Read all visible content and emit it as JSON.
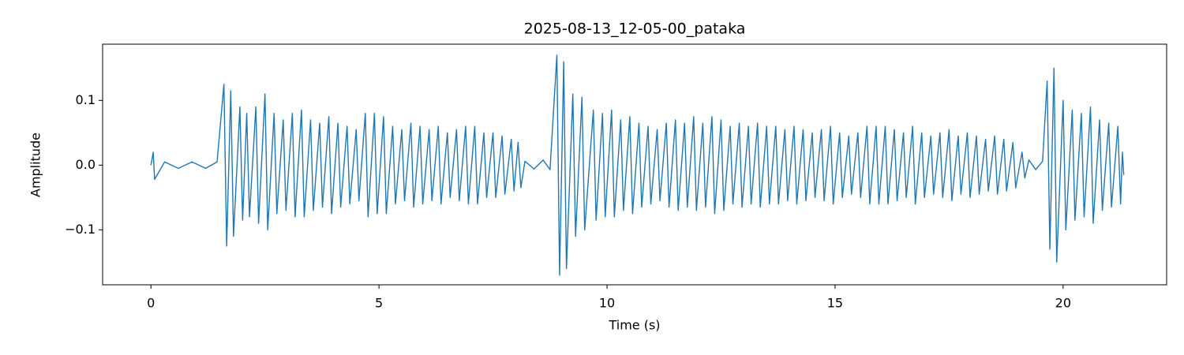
{
  "chart_data": {
    "type": "line",
    "title": "2025-08-13_12-05-00_pataka",
    "xlabel": "Time (s)",
    "ylabel": "Amplitude",
    "xlim": [
      -1.06,
      22.27
    ],
    "xticks": [
      0,
      5,
      10,
      15,
      20
    ],
    "ylim": [
      -0.185,
      0.187
    ],
    "yticks": [
      {
        "value": -0.1,
        "label": "−0.1"
      },
      {
        "value": 0,
        "label": "0.0"
      },
      0.1
    ],
    "grid": false,
    "series": [
      {
        "color": "#1f77b4",
        "x": [
          0,
          0.05,
          0.08,
          0.3,
          0.6,
          0.9,
          1.2,
          1.45,
          1.6,
          1.66,
          1.75,
          1.81,
          1.95,
          2.01,
          2.1,
          2.16,
          2.3,
          2.36,
          2.5,
          2.56,
          2.7,
          2.76,
          2.9,
          2.96,
          3.1,
          3.16,
          3.3,
          3.36,
          3.5,
          3.56,
          3.7,
          3.76,
          3.9,
          3.96,
          4.1,
          4.16,
          4.3,
          4.36,
          4.5,
          4.56,
          4.7,
          4.76,
          4.9,
          4.96,
          5.1,
          5.16,
          5.3,
          5.36,
          5.5,
          5.56,
          5.7,
          5.76,
          5.9,
          5.96,
          6.1,
          6.16,
          6.3,
          6.36,
          6.5,
          6.56,
          6.7,
          6.76,
          6.9,
          6.96,
          7.1,
          7.16,
          7.3,
          7.36,
          7.5,
          7.56,
          7.7,
          7.76,
          7.9,
          7.96,
          8.05,
          8.11,
          8.2,
          8.4,
          8.6,
          8.75,
          8.9,
          8.96,
          9.05,
          9.11,
          9.25,
          9.31,
          9.45,
          9.51,
          9.7,
          9.76,
          9.9,
          9.96,
          10.1,
          10.16,
          10.3,
          10.36,
          10.5,
          10.56,
          10.7,
          10.76,
          10.9,
          10.96,
          11.1,
          11.16,
          11.3,
          11.36,
          11.5,
          11.56,
          11.7,
          11.76,
          11.9,
          11.96,
          12.1,
          12.16,
          12.3,
          12.36,
          12.5,
          12.56,
          12.7,
          12.76,
          12.9,
          12.96,
          13.1,
          13.16,
          13.3,
          13.36,
          13.5,
          13.56,
          13.7,
          13.76,
          13.9,
          13.96,
          14.1,
          14.16,
          14.3,
          14.36,
          14.5,
          14.56,
          14.7,
          14.76,
          14.9,
          14.96,
          15.1,
          15.16,
          15.3,
          15.36,
          15.5,
          15.56,
          15.7,
          15.76,
          15.9,
          15.96,
          16.1,
          16.16,
          16.3,
          16.36,
          16.5,
          16.56,
          16.7,
          16.76,
          16.9,
          16.96,
          17.1,
          17.16,
          17.3,
          17.36,
          17.5,
          17.56,
          17.7,
          17.76,
          17.9,
          17.96,
          18.1,
          18.16,
          18.3,
          18.36,
          18.5,
          18.56,
          18.7,
          18.76,
          18.9,
          18.96,
          19.1,
          19.16,
          19.25,
          19.4,
          19.55,
          19.65,
          19.71,
          19.8,
          19.86,
          20.0,
          20.06,
          20.2,
          20.26,
          20.4,
          20.46,
          20.6,
          20.66,
          20.8,
          20.86,
          21.0,
          21.06,
          21.2,
          21.26,
          21.3,
          21.33
        ],
        "values": [
          0,
          0.02,
          -0.022,
          0.005,
          -0.005,
          0.005,
          -0.005,
          0.005,
          0.125,
          -0.125,
          0.115,
          -0.11,
          0.09,
          -0.085,
          0.08,
          -0.08,
          0.09,
          -0.09,
          0.11,
          -0.1,
          0.08,
          -0.075,
          0.07,
          -0.07,
          0.08,
          -0.08,
          0.085,
          -0.08,
          0.07,
          -0.07,
          0.065,
          -0.065,
          0.075,
          -0.075,
          0.065,
          -0.065,
          0.06,
          -0.06,
          0.055,
          -0.055,
          0.08,
          -0.08,
          0.08,
          -0.075,
          0.075,
          -0.075,
          0.06,
          -0.06,
          0.055,
          -0.055,
          0.065,
          -0.065,
          0.06,
          -0.06,
          0.055,
          -0.055,
          0.06,
          -0.06,
          0.05,
          -0.05,
          0.055,
          -0.055,
          0.06,
          -0.06,
          0.06,
          -0.06,
          0.05,
          -0.05,
          0.05,
          -0.05,
          0.045,
          -0.045,
          0.04,
          -0.04,
          0.035,
          -0.035,
          0.006,
          -0.006,
          0.008,
          -0.007,
          0.17,
          -0.17,
          0.16,
          -0.16,
          0.11,
          -0.11,
          0.105,
          -0.1,
          0.085,
          -0.085,
          0.08,
          -0.08,
          0.085,
          -0.08,
          0.07,
          -0.07,
          0.075,
          -0.075,
          0.065,
          -0.065,
          0.06,
          -0.06,
          0.055,
          -0.055,
          0.065,
          -0.065,
          0.07,
          -0.07,
          0.065,
          -0.065,
          0.075,
          -0.07,
          0.065,
          -0.065,
          0.075,
          -0.075,
          0.07,
          -0.07,
          0.06,
          -0.06,
          0.065,
          -0.065,
          0.06,
          -0.06,
          0.065,
          -0.065,
          0.06,
          -0.06,
          0.06,
          -0.06,
          0.055,
          -0.055,
          0.06,
          -0.06,
          0.055,
          -0.055,
          0.05,
          -0.05,
          0.055,
          -0.055,
          0.06,
          -0.06,
          0.05,
          -0.05,
          0.045,
          -0.045,
          0.05,
          -0.05,
          0.06,
          -0.06,
          0.06,
          -0.06,
          0.06,
          -0.06,
          0.055,
          -0.055,
          0.05,
          -0.05,
          0.06,
          -0.06,
          0.05,
          -0.05,
          0.045,
          -0.045,
          0.05,
          -0.05,
          0.055,
          -0.055,
          0.045,
          -0.045,
          0.05,
          -0.05,
          0.045,
          -0.045,
          0.04,
          -0.04,
          0.045,
          -0.045,
          0.04,
          -0.04,
          0.035,
          -0.035,
          0.02,
          -0.02,
          0.008,
          -0.007,
          0.006,
          0.13,
          -0.13,
          0.15,
          -0.15,
          0.1,
          -0.1,
          0.085,
          -0.085,
          0.08,
          -0.08,
          0.09,
          -0.09,
          0.07,
          -0.07,
          0.065,
          -0.065,
          0.06,
          -0.06,
          0.02,
          -0.015
        ]
      }
    ]
  }
}
